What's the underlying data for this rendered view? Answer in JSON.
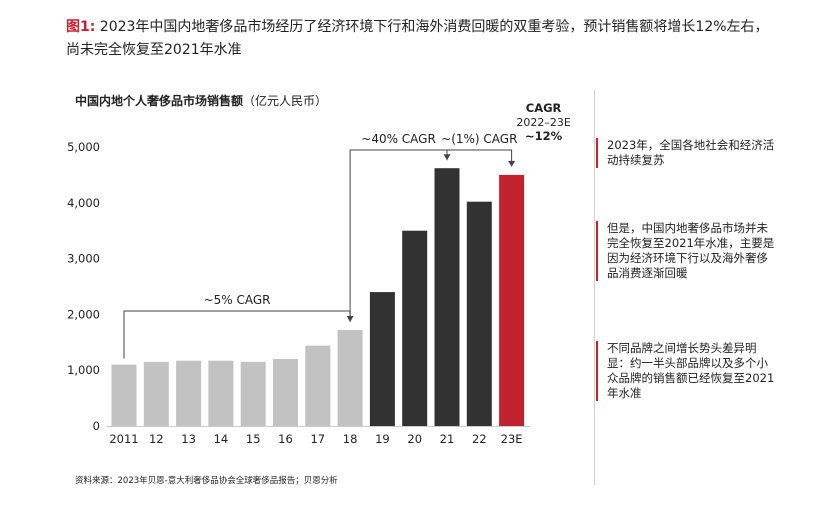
{
  "header": {
    "figure_label": "图1:",
    "title": "2023年中国内地奢侈品市场经历了经济环境下行和海外消费回暖的双重考验，预计销售额将增长12%左右，尚未完全恢复至2021年水准"
  },
  "chart_data": {
    "type": "bar",
    "title": "中国内地个人奢侈品市场销售额",
    "unit": "（亿元人民币）",
    "categories": [
      "2011",
      "12",
      "13",
      "14",
      "15",
      "16",
      "17",
      "18",
      "19",
      "20",
      "21",
      "22",
      "23E"
    ],
    "values": [
      1100,
      1150,
      1170,
      1170,
      1150,
      1200,
      1440,
      1720,
      2400,
      3500,
      4620,
      4020,
      4500
    ],
    "bar_groups": [
      "light",
      "light",
      "light",
      "light",
      "light",
      "light",
      "light",
      "light",
      "dark",
      "dark",
      "dark",
      "dark",
      "red"
    ],
    "colors": {
      "light": "#c2c2c2",
      "dark": "#323232",
      "red": "#c0232e"
    },
    "y_ticks": [
      "0",
      "1,000",
      "2,000",
      "3,000",
      "4,000",
      "5,000"
    ],
    "ylim": [
      0,
      5500
    ],
    "annotations": [
      {
        "label": "~5% CAGR",
        "from": 0,
        "to": 7
      },
      {
        "label": "~40% CAGR",
        "from": 7,
        "to": 10
      },
      {
        "label": "~(1%) CAGR",
        "from": 10,
        "to": 12
      }
    ],
    "cagr_callout": {
      "line1": "CAGR",
      "line2": "2022–23E",
      "line3": "~12%"
    }
  },
  "notes": [
    "2023年，全国各地社会和经济活动持续复苏",
    "但是，中国内地奢侈品市场并未完全恢复至2021年水准，主要是因为经济环境下行以及海外奢侈品消费逐渐回暖",
    "不同品牌之间增长势头差异明显：约一半头部品牌以及多个小众品牌的销售额已经恢复至2021年水准"
  ],
  "source": "资料来源：2023年贝恩-意大利奢侈品协会全球奢侈品报告；贝恩分析"
}
